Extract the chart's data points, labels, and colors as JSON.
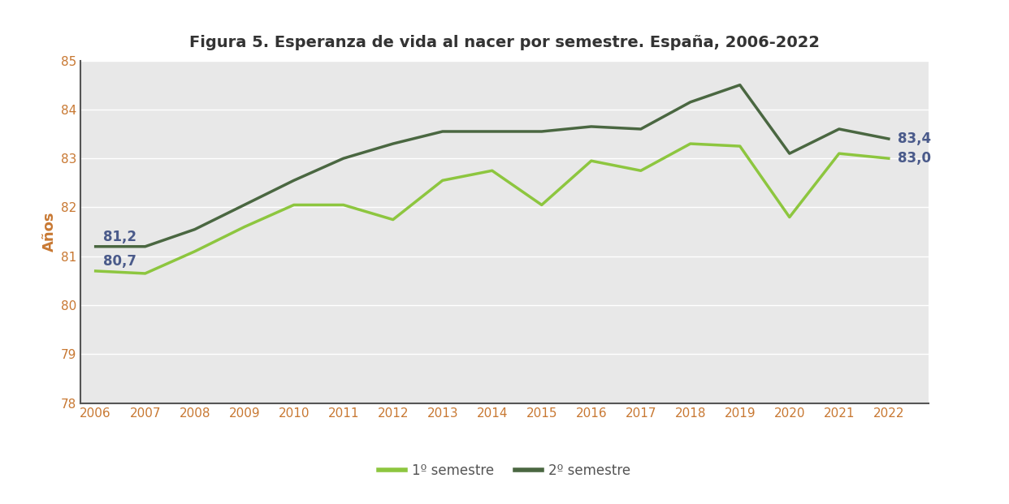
{
  "title": "Figura 5. Esperanza de vida al nacer por semestre. España, 2006-2022",
  "ylabel": "Años",
  "years": [
    2006,
    2007,
    2008,
    2009,
    2010,
    2011,
    2012,
    2013,
    2014,
    2015,
    2016,
    2017,
    2018,
    2019,
    2020,
    2021,
    2022
  ],
  "sem1": [
    80.7,
    80.65,
    81.1,
    81.6,
    82.05,
    82.05,
    81.75,
    82.55,
    82.75,
    82.05,
    82.95,
    82.75,
    83.3,
    83.25,
    81.8,
    83.1,
    83.0
  ],
  "sem2": [
    81.2,
    81.2,
    81.55,
    82.05,
    82.55,
    83.0,
    83.3,
    83.55,
    83.55,
    83.55,
    83.65,
    83.6,
    84.15,
    84.5,
    83.1,
    83.6,
    83.4
  ],
  "sem1_label": "1º semestre",
  "sem2_label": "2º semestre",
  "sem1_color": "#8dc63f",
  "sem2_color": "#4a6741",
  "ylim": [
    78,
    85
  ],
  "yticks": [
    78,
    79,
    80,
    81,
    82,
    83,
    84,
    85
  ],
  "annotation_2006_sem1": "80,7",
  "annotation_2006_sem2": "81,2",
  "annotation_2022_sem1": "83,0",
  "annotation_2022_sem2": "83,4",
  "bg_color": "#e8e8e8",
  "fig_bg_color": "#ffffff",
  "title_color": "#333333",
  "annotation_color": "#4a5a8a",
  "tick_label_color": "#c87832",
  "ylabel_color": "#c87832",
  "spine_color": "#555555"
}
